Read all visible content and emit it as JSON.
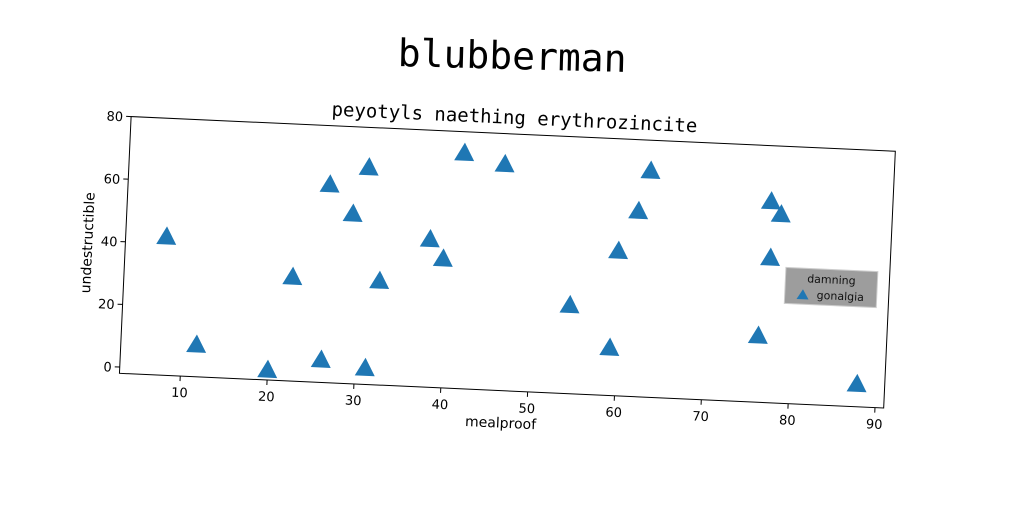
{
  "figure": {
    "suptitle": "blubberman"
  },
  "chart_data": {
    "type": "scatter",
    "title": "peyotyls naething erythrozincite",
    "xlabel": "mealproof",
    "ylabel": "undestructible",
    "xlim": [
      3,
      91
    ],
    "ylim": [
      -2,
      80
    ],
    "xticks": [
      10,
      20,
      30,
      40,
      50,
      60,
      70,
      80,
      90
    ],
    "yticks": [
      0,
      20,
      40,
      60,
      80
    ],
    "grid": false,
    "legend": {
      "title": "damning",
      "placement": "right"
    },
    "series": [
      {
        "name": "gonalgia",
        "marker": "triangle",
        "color": "#1f77b4",
        "points": [
          [
            7.7,
            42
          ],
          [
            11.7,
            8
          ],
          [
            20.0,
            1
          ],
          [
            22.4,
            31
          ],
          [
            26.1,
            5
          ],
          [
            26.2,
            61
          ],
          [
            29.0,
            52
          ],
          [
            30.6,
            67
          ],
          [
            31.2,
            3
          ],
          [
            32.4,
            31
          ],
          [
            38.0,
            45
          ],
          [
            39.6,
            39
          ],
          [
            41.5,
            73
          ],
          [
            46.2,
            70
          ],
          [
            54.4,
            26
          ],
          [
            59.2,
            13
          ],
          [
            59.7,
            44
          ],
          [
            61.8,
            57
          ],
          [
            63.0,
            70
          ],
          [
            76.2,
            19
          ],
          [
            77.0,
            62
          ],
          [
            77.2,
            44
          ],
          [
            78.2,
            58
          ],
          [
            87.8,
            5
          ]
        ]
      }
    ]
  }
}
